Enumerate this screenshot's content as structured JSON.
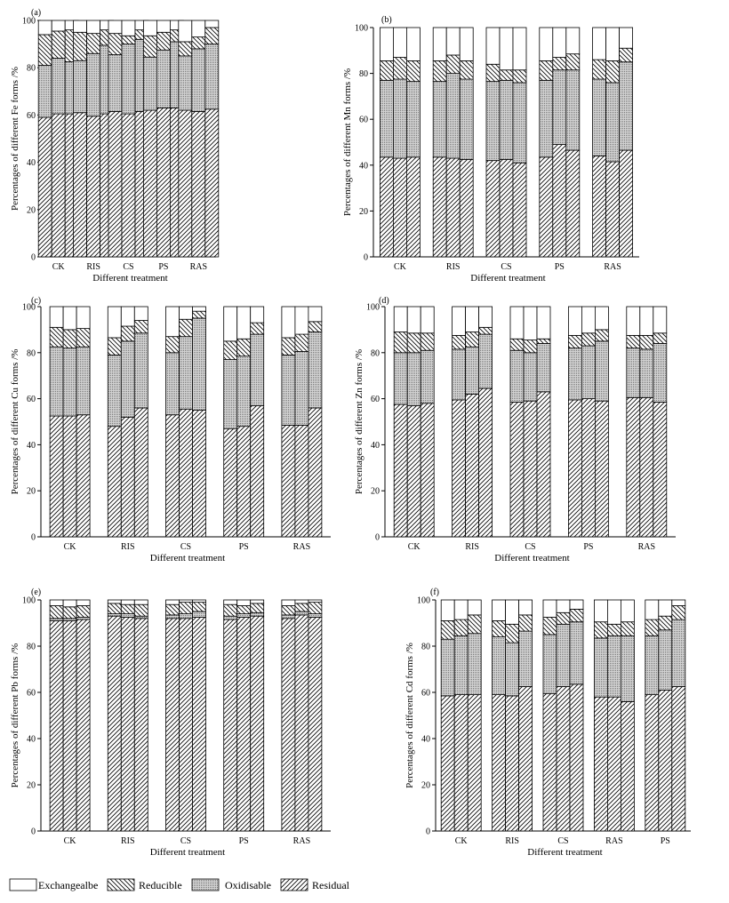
{
  "legend": [
    {
      "key": "exchangeable",
      "label": "Exchangealbe",
      "fill": "white"
    },
    {
      "key": "reducible",
      "label": "Reducible",
      "fill": "back"
    },
    {
      "key": "oxidisable",
      "label": "Oxidisable",
      "fill": "dots"
    },
    {
      "key": "residual",
      "label": "Residual",
      "fill": "fwd"
    }
  ],
  "colors": {
    "ink": "#000000",
    "dot_gray": "#b4b4b4",
    "background": "#ffffff"
  },
  "chart_data": [
    {
      "panel": "(a)",
      "type": "bar",
      "stacked": true,
      "ylabel": "Percentages of different Fe forms /%",
      "xlabel": "Different treatment",
      "ylim": [
        0,
        100
      ],
      "yticks": [
        0,
        20,
        40,
        60,
        80,
        100
      ],
      "categories": [
        "CK",
        "RIS",
        "CS",
        "PS",
        "RAS"
      ],
      "bars": [
        [
          59,
          81,
          94
        ],
        [
          60.5,
          84,
          95.5
        ],
        [
          60.5,
          82.5,
          96
        ],
        [
          61,
          83,
          95
        ],
        [
          59.5,
          86,
          94.5
        ],
        [
          60.5,
          89.5,
          96
        ],
        [
          61.5,
          85.5,
          94.5
        ],
        [
          60.5,
          90,
          93.5
        ],
        [
          61.5,
          92,
          96
        ],
        [
          62,
          84.5,
          93.5
        ],
        [
          63,
          87.5,
          95
        ],
        [
          63,
          91,
          96
        ],
        [
          62,
          85,
          91
        ],
        [
          61.5,
          88,
          93
        ],
        [
          62.5,
          90,
          97
        ]
      ]
    },
    {
      "panel": "(b)",
      "type": "bar",
      "stacked": true,
      "ylabel": "Percentages of different Mn forms /%",
      "xlabel": "Different treatment",
      "ylim": [
        0,
        100
      ],
      "yticks": [
        0,
        20,
        40,
        60,
        80,
        100
      ],
      "categories": [
        "CK",
        "RIS",
        "CS",
        "PS",
        "RAS"
      ],
      "bars": [
        [
          43.5,
          77,
          85.5
        ],
        [
          43,
          77.5,
          87
        ],
        [
          43.5,
          76.5,
          85.5
        ],
        [
          43.5,
          76.5,
          85.5
        ],
        [
          43,
          80,
          88
        ],
        [
          42.5,
          77.5,
          85.5
        ],
        [
          42,
          76.5,
          84
        ],
        [
          42.5,
          77,
          81.5
        ],
        [
          41,
          76,
          81.5
        ],
        [
          43.5,
          77,
          85.5
        ],
        [
          49,
          81.5,
          87
        ],
        [
          46.5,
          81.5,
          88.5
        ],
        [
          44,
          77.5,
          86
        ],
        [
          41.5,
          76,
          85.5
        ],
        [
          46.5,
          85,
          91
        ]
      ]
    },
    {
      "panel": "(c)",
      "type": "bar",
      "stacked": true,
      "ylabel": "Percentages of different Cu forms /%",
      "xlabel": "Different treatment",
      "ylim": [
        0,
        100
      ],
      "yticks": [
        0,
        20,
        40,
        60,
        80,
        100
      ],
      "categories": [
        "CK",
        "RIS",
        "CS",
        "PS",
        "RAS"
      ],
      "bars": [
        [
          52.5,
          82.5,
          91
        ],
        [
          52.5,
          82,
          90
        ],
        [
          53,
          82.5,
          90.5
        ],
        [
          48,
          79,
          86.5
        ],
        [
          52,
          85,
          91.5
        ],
        [
          56,
          88.5,
          94
        ],
        [
          53,
          80,
          87
        ],
        [
          55.5,
          87,
          94.5
        ],
        [
          55,
          95,
          98
        ],
        [
          47,
          77,
          85
        ],
        [
          48,
          78.5,
          86
        ],
        [
          57,
          88,
          93
        ],
        [
          48.5,
          79,
          86.5
        ],
        [
          48.5,
          80.5,
          88
        ],
        [
          56,
          89,
          93.5
        ]
      ]
    },
    {
      "panel": "(d)",
      "type": "bar",
      "stacked": true,
      "ylabel": "Percentages of different Zn forms /%",
      "xlabel": "Different treatment",
      "ylim": [
        0,
        100
      ],
      "yticks": [
        0,
        20,
        40,
        60,
        80,
        100
      ],
      "categories": [
        "CK",
        "RIS",
        "CS",
        "PS",
        "RAS"
      ],
      "bars": [
        [
          57.5,
          80,
          89
        ],
        [
          57,
          80,
          88.5
        ],
        [
          58,
          81,
          88.5
        ],
        [
          59.5,
          81.5,
          87.5
        ],
        [
          62,
          82.5,
          89
        ],
        [
          64.5,
          88,
          91
        ],
        [
          58.5,
          81,
          86
        ],
        [
          59,
          80,
          85.5
        ],
        [
          63,
          84,
          86
        ],
        [
          59.5,
          82,
          87.5
        ],
        [
          60,
          83,
          88.5
        ],
        [
          59,
          85,
          90
        ],
        [
          60.5,
          82,
          87.5
        ],
        [
          60.5,
          81.5,
          87.5
        ],
        [
          58.5,
          84,
          88.5
        ]
      ]
    },
    {
      "panel": "(e)",
      "type": "bar",
      "stacked": true,
      "ylabel": "Percentages of different Pb forms /%",
      "xlabel": "Different treatment",
      "ylim": [
        0,
        100
      ],
      "yticks": [
        0,
        20,
        40,
        60,
        80,
        100
      ],
      "categories": [
        "CK",
        "RIS",
        "CS",
        "PS",
        "RAS"
      ],
      "bars": [
        [
          91,
          92,
          97.5
        ],
        [
          91,
          92,
          97
        ],
        [
          91.5,
          92.5,
          97.5
        ],
        [
          93,
          94,
          98.5
        ],
        [
          92.5,
          94,
          98
        ],
        [
          92,
          93,
          98
        ],
        [
          92,
          93.5,
          98
        ],
        [
          92,
          94,
          99
        ],
        [
          92.5,
          95,
          99
        ],
        [
          91.5,
          93,
          98
        ],
        [
          92.5,
          94,
          97.5
        ],
        [
          93,
          94.5,
          98.5
        ],
        [
          92,
          93.5,
          97.5
        ],
        [
          93.5,
          95,
          98.5
        ],
        [
          92.5,
          94,
          99
        ]
      ]
    },
    {
      "panel": "(f)",
      "type": "bar",
      "stacked": true,
      "ylabel": "Percentages of different Cd forms /%",
      "xlabel": "Different treatment",
      "ylim": [
        0,
        100
      ],
      "yticks": [
        0,
        20,
        40,
        60,
        80,
        100
      ],
      "categories": [
        "CK",
        "RIS",
        "CS",
        "RAS",
        "PS"
      ],
      "bars": [
        [
          58.5,
          83,
          91
        ],
        [
          59,
          84.5,
          91.5
        ],
        [
          59,
          85.5,
          93.5
        ],
        [
          59,
          84,
          91
        ],
        [
          58.5,
          81.5,
          89.5
        ],
        [
          62.5,
          86.5,
          93.5
        ],
        [
          59.5,
          85,
          92.5
        ],
        [
          62.5,
          89.5,
          94.5
        ],
        [
          63.5,
          90.5,
          96
        ],
        [
          58,
          83.5,
          90.5
        ],
        [
          58,
          84.5,
          89.5
        ],
        [
          56,
          84.5,
          90.5
        ],
        [
          59,
          84.5,
          91.5
        ],
        [
          61,
          87,
          93
        ],
        [
          62.5,
          91.5,
          97.5
        ]
      ]
    }
  ]
}
